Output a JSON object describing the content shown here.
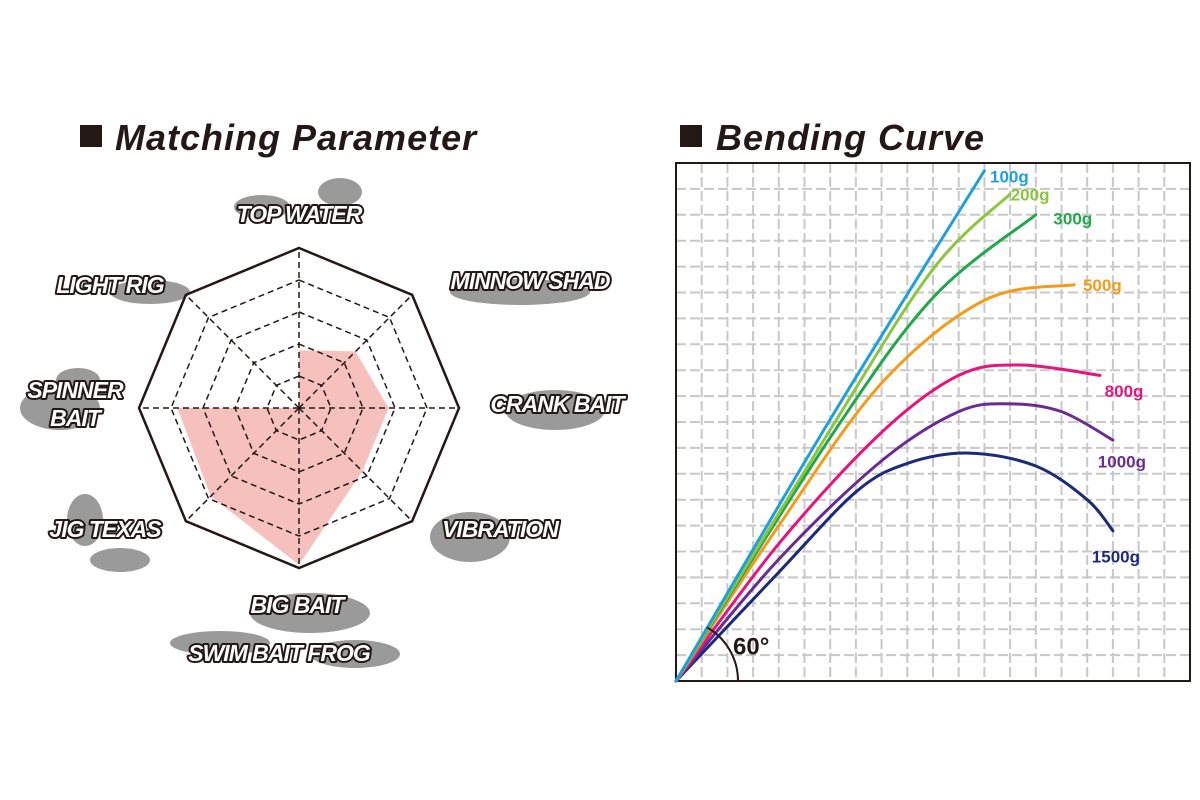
{
  "chart_data": [
    {
      "type": "radar",
      "title": "Matching Parameter",
      "categories": [
        "TOP WATER",
        "MINNOW SHAD",
        "CRANK BAIT",
        "VIBRATION",
        [
          "BIG BAIT",
          "SWIM BAIT  FROG"
        ],
        "JIG  TEXAS",
        [
          "SPINNER",
          "BAIT"
        ],
        "LIGHT RIG"
      ],
      "values": [
        1.8,
        2.5,
        2.8,
        2.8,
        4.9,
        3.9,
        3.8,
        0
      ],
      "rlim": [
        0,
        5
      ],
      "rticks": [
        1,
        2,
        3,
        4,
        5
      ],
      "color": "#f6c1bd"
    },
    {
      "type": "line",
      "title": "Bending Curve",
      "annotation": "60°",
      "grid": true,
      "xlim": [
        0,
        20
      ],
      "ylim": [
        0,
        20
      ],
      "xticks": [
        0,
        1,
        2,
        3,
        4,
        5,
        6,
        7,
        8,
        9,
        10,
        11,
        12,
        13,
        14,
        15,
        16,
        17,
        18,
        19,
        20
      ],
      "yticks": [
        0,
        1,
        2,
        3,
        4,
        5,
        6,
        7,
        8,
        9,
        10,
        11,
        12,
        13,
        14,
        15,
        16,
        17,
        18,
        19,
        20
      ],
      "series": [
        {
          "name": "100g",
          "color": "#1ea0dc",
          "x": [
            0,
            6,
            12
          ],
          "values": [
            0,
            10.1,
            19.7
          ]
        },
        {
          "name": "200g",
          "color": "#8cc63f",
          "x": [
            0,
            6,
            10,
            13
          ],
          "values": [
            0,
            9.7,
            15.9,
            18.8
          ]
        },
        {
          "name": "300g",
          "color": "#22a84a",
          "x": [
            0,
            6,
            10,
            14
          ],
          "values": [
            0,
            9.4,
            14.8,
            18
          ]
        },
        {
          "name": "500g",
          "color": "#f39c1a",
          "x": [
            0,
            4,
            8,
            12,
            15.5
          ],
          "values": [
            0,
            6,
            11.5,
            14.7,
            15.3
          ]
        },
        {
          "name": "800g",
          "color": "#e5157f",
          "x": [
            0,
            4,
            8,
            11,
            13.4,
            16.5
          ],
          "values": [
            0,
            5.3,
            9.6,
            11.8,
            12.2,
            11.8
          ]
        },
        {
          "name": "1000g",
          "color": "#6a2c91",
          "x": [
            0,
            4,
            8,
            11,
            13,
            15,
            17
          ],
          "values": [
            0,
            4.7,
            8.5,
            10.4,
            10.7,
            10.4,
            9.3
          ]
        },
        {
          "name": "1500g",
          "color": "#1d2a7a",
          "x": [
            0,
            4,
            7,
            9,
            11.4,
            14,
            16,
            17
          ],
          "values": [
            0,
            4.2,
            7.3,
            8.4,
            8.8,
            8.3,
            7,
            5.8
          ]
        }
      ]
    }
  ]
}
